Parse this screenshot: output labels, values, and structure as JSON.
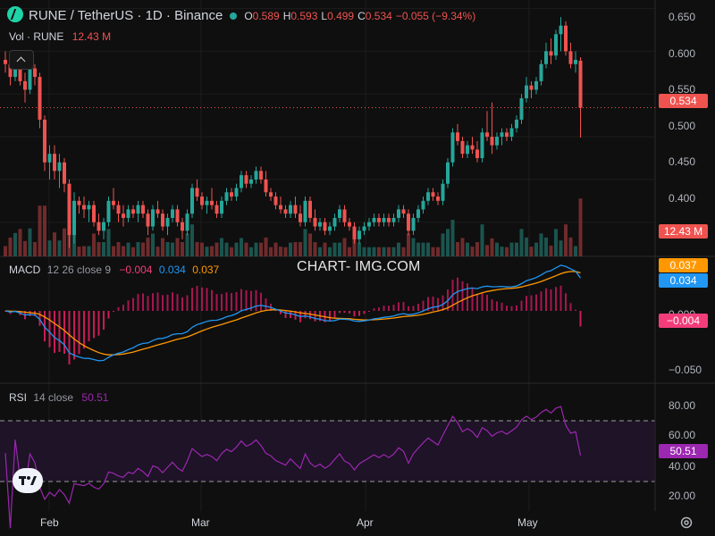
{
  "header": {
    "symbol": "RUNE / TetherUS · 1D · Binance",
    "ohlc": [
      {
        "k": "O",
        "v": "0.589"
      },
      {
        "k": "H",
        "v": "0.593"
      },
      {
        "k": "L",
        "v": "0.499"
      },
      {
        "k": "C",
        "v": "0.534"
      }
    ],
    "change": "−0.055 (−9.34%)",
    "vol_label": "Vol · RUNE",
    "vol_value": "12.43 M"
  },
  "watermark": "CHART- IMG.COM",
  "macd_legend": {
    "label": "MACD",
    "params": "12 26 close 9",
    "hist": "−0.004",
    "macd": "0.034",
    "signal": "0.037"
  },
  "rsi_legend": {
    "label": "RSI",
    "params": "14 close",
    "value": "50.51"
  },
  "badges": {
    "price": "0.534",
    "volume": "12.43 M",
    "signal": "0.037",
    "macd": "0.034",
    "hist": "−0.004",
    "rsi": "50.51"
  },
  "price_axis": [
    "0.650",
    "0.600",
    "0.550",
    "0.500",
    "0.450",
    "0.400"
  ],
  "macd_axis": [
    "0.000",
    "−0.050"
  ],
  "rsi_axis": [
    "80.00",
    "60.00",
    "40.00",
    "20.00"
  ],
  "time_axis": [
    "Feb",
    "Mar",
    "Apr",
    "May"
  ],
  "colors": {
    "up": "#26a69a",
    "down": "#ef5350",
    "macd": "#2196f3",
    "signal": "#ff9800",
    "rsi": "#9c27b0",
    "rsi_band": "#2a1a3a"
  },
  "chart_data": [
    {
      "type": "candlestick",
      "title": "RUNE / TetherUS · 1D · Binance",
      "ylim": [
        0.36,
        0.66
      ],
      "x_start": "Jan 19",
      "x_ticks": [
        "Feb",
        "Mar",
        "Apr",
        "May"
      ],
      "ohlc": [
        [
          0.59,
          0.6,
          0.575,
          0.585
        ],
        [
          0.585,
          0.59,
          0.56,
          0.57
        ],
        [
          0.57,
          0.6,
          0.565,
          0.59
        ],
        [
          0.59,
          0.595,
          0.56,
          0.565
        ],
        [
          0.565,
          0.575,
          0.54,
          0.555
        ],
        [
          0.555,
          0.59,
          0.55,
          0.58
        ],
        [
          0.58,
          0.585,
          0.56,
          0.57
        ],
        [
          0.57,
          0.575,
          0.51,
          0.52
        ],
        [
          0.52,
          0.525,
          0.46,
          0.47
        ],
        [
          0.47,
          0.49,
          0.45,
          0.48
        ],
        [
          0.48,
          0.49,
          0.45,
          0.46
        ],
        [
          0.46,
          0.48,
          0.44,
          0.47
        ],
        [
          0.47,
          0.475,
          0.435,
          0.445
        ],
        [
          0.445,
          0.45,
          0.37,
          0.385
        ],
        [
          0.385,
          0.435,
          0.375,
          0.425
        ],
        [
          0.425,
          0.43,
          0.41,
          0.42
        ],
        [
          0.42,
          0.43,
          0.405,
          0.415
        ],
        [
          0.415,
          0.425,
          0.4,
          0.42
        ],
        [
          0.42,
          0.425,
          0.395,
          0.4
        ],
        [
          0.4,
          0.41,
          0.385,
          0.39
        ],
        [
          0.39,
          0.405,
          0.38,
          0.4
        ],
        [
          0.4,
          0.43,
          0.395,
          0.425
        ],
        [
          0.425,
          0.44,
          0.415,
          0.42
        ],
        [
          0.42,
          0.425,
          0.4,
          0.41
        ],
        [
          0.41,
          0.42,
          0.395,
          0.405
        ],
        [
          0.405,
          0.42,
          0.4,
          0.415
        ],
        [
          0.415,
          0.42,
          0.405,
          0.41
        ],
        [
          0.41,
          0.425,
          0.4,
          0.42
        ],
        [
          0.42,
          0.425,
          0.405,
          0.41
        ],
        [
          0.41,
          0.415,
          0.385,
          0.395
        ],
        [
          0.395,
          0.42,
          0.39,
          0.415
        ],
        [
          0.415,
          0.425,
          0.405,
          0.41
        ],
        [
          0.41,
          0.415,
          0.39,
          0.395
        ],
        [
          0.395,
          0.41,
          0.385,
          0.405
        ],
        [
          0.405,
          0.42,
          0.4,
          0.415
        ],
        [
          0.415,
          0.42,
          0.395,
          0.4
        ],
        [
          0.4,
          0.405,
          0.38,
          0.39
        ],
        [
          0.39,
          0.415,
          0.385,
          0.41
        ],
        [
          0.41,
          0.445,
          0.405,
          0.44
        ],
        [
          0.44,
          0.45,
          0.425,
          0.43
        ],
        [
          0.43,
          0.435,
          0.415,
          0.42
        ],
        [
          0.42,
          0.43,
          0.41,
          0.425
        ],
        [
          0.425,
          0.44,
          0.415,
          0.42
        ],
        [
          0.42,
          0.425,
          0.405,
          0.41
        ],
        [
          0.41,
          0.43,
          0.405,
          0.425
        ],
        [
          0.425,
          0.44,
          0.42,
          0.435
        ],
        [
          0.435,
          0.44,
          0.425,
          0.43
        ],
        [
          0.43,
          0.445,
          0.425,
          0.44
        ],
        [
          0.44,
          0.46,
          0.435,
          0.455
        ],
        [
          0.455,
          0.46,
          0.44,
          0.445
        ],
        [
          0.445,
          0.455,
          0.44,
          0.45
        ],
        [
          0.45,
          0.465,
          0.445,
          0.46
        ],
        [
          0.46,
          0.465,
          0.445,
          0.45
        ],
        [
          0.45,
          0.46,
          0.43,
          0.435
        ],
        [
          0.435,
          0.44,
          0.425,
          0.43
        ],
        [
          0.43,
          0.435,
          0.415,
          0.42
        ],
        [
          0.42,
          0.43,
          0.41,
          0.415
        ],
        [
          0.415,
          0.42,
          0.405,
          0.41
        ],
        [
          0.41,
          0.425,
          0.405,
          0.42
        ],
        [
          0.42,
          0.43,
          0.405,
          0.41
        ],
        [
          0.41,
          0.42,
          0.395,
          0.4
        ],
        [
          0.4,
          0.43,
          0.395,
          0.425
        ],
        [
          0.425,
          0.43,
          0.4,
          0.405
        ],
        [
          0.405,
          0.415,
          0.39,
          0.395
        ],
        [
          0.395,
          0.405,
          0.39,
          0.4
        ],
        [
          0.4,
          0.405,
          0.385,
          0.39
        ],
        [
          0.39,
          0.4,
          0.385,
          0.395
        ],
        [
          0.395,
          0.41,
          0.39,
          0.405
        ],
        [
          0.405,
          0.42,
          0.4,
          0.415
        ],
        [
          0.415,
          0.42,
          0.395,
          0.4
        ],
        [
          0.4,
          0.405,
          0.39,
          0.395
        ],
        [
          0.395,
          0.4,
          0.375,
          0.38
        ],
        [
          0.38,
          0.395,
          0.375,
          0.39
        ],
        [
          0.39,
          0.4,
          0.385,
          0.395
        ],
        [
          0.395,
          0.405,
          0.39,
          0.4
        ],
        [
          0.4,
          0.41,
          0.395,
          0.405
        ],
        [
          0.405,
          0.41,
          0.395,
          0.4
        ],
        [
          0.4,
          0.41,
          0.395,
          0.405
        ],
        [
          0.405,
          0.41,
          0.395,
          0.4
        ],
        [
          0.4,
          0.41,
          0.395,
          0.405
        ],
        [
          0.405,
          0.42,
          0.4,
          0.415
        ],
        [
          0.415,
          0.42,
          0.405,
          0.41
        ],
        [
          0.41,
          0.415,
          0.385,
          0.39
        ],
        [
          0.39,
          0.41,
          0.385,
          0.405
        ],
        [
          0.405,
          0.42,
          0.4,
          0.415
        ],
        [
          0.415,
          0.43,
          0.41,
          0.425
        ],
        [
          0.425,
          0.44,
          0.42,
          0.435
        ],
        [
          0.435,
          0.44,
          0.425,
          0.43
        ],
        [
          0.43,
          0.435,
          0.42,
          0.425
        ],
        [
          0.425,
          0.45,
          0.42,
          0.445
        ],
        [
          0.445,
          0.475,
          0.44,
          0.47
        ],
        [
          0.47,
          0.51,
          0.465,
          0.505
        ],
        [
          0.505,
          0.515,
          0.49,
          0.495
        ],
        [
          0.495,
          0.5,
          0.475,
          0.48
        ],
        [
          0.48,
          0.495,
          0.475,
          0.49
        ],
        [
          0.49,
          0.5,
          0.48,
          0.485
        ],
        [
          0.485,
          0.495,
          0.47,
          0.475
        ],
        [
          0.475,
          0.51,
          0.47,
          0.505
        ],
        [
          0.505,
          0.53,
          0.495,
          0.5
        ],
        [
          0.5,
          0.54,
          0.48,
          0.49
        ],
        [
          0.49,
          0.505,
          0.485,
          0.5
        ],
        [
          0.5,
          0.51,
          0.49,
          0.505
        ],
        [
          0.505,
          0.51,
          0.495,
          0.5
        ],
        [
          0.5,
          0.515,
          0.495,
          0.51
        ],
        [
          0.51,
          0.525,
          0.505,
          0.52
        ],
        [
          0.52,
          0.55,
          0.515,
          0.545
        ],
        [
          0.545,
          0.57,
          0.54,
          0.56
        ],
        [
          0.56,
          0.565,
          0.545,
          0.555
        ],
        [
          0.555,
          0.57,
          0.55,
          0.565
        ],
        [
          0.565,
          0.59,
          0.56,
          0.585
        ],
        [
          0.585,
          0.61,
          0.58,
          0.6
        ],
        [
          0.6,
          0.615,
          0.585,
          0.595
        ],
        [
          0.595,
          0.625,
          0.59,
          0.62
        ],
        [
          0.62,
          0.64,
          0.6,
          0.63
        ],
        [
          0.63,
          0.635,
          0.595,
          0.6
        ],
        [
          0.6,
          0.61,
          0.58,
          0.585
        ],
        [
          0.585,
          0.6,
          0.575,
          0.59
        ],
        [
          0.589,
          0.593,
          0.499,
          0.534
        ]
      ],
      "volume": {
        "last": "12.43 M"
      }
    },
    {
      "type": "line",
      "title": "MACD 12 26 close 9",
      "ylim": [
        -0.06,
        0.04
      ],
      "series": [
        {
          "name": "MACD",
          "last": 0.034
        },
        {
          "name": "Signal",
          "last": 0.037
        },
        {
          "name": "Histogram",
          "last": -0.004
        }
      ]
    },
    {
      "type": "line",
      "title": "RSI 14 close",
      "ylim": [
        15,
        90
      ],
      "bands": [
        30,
        70
      ],
      "series": [
        {
          "name": "RSI",
          "last": 50.51
        }
      ]
    }
  ]
}
